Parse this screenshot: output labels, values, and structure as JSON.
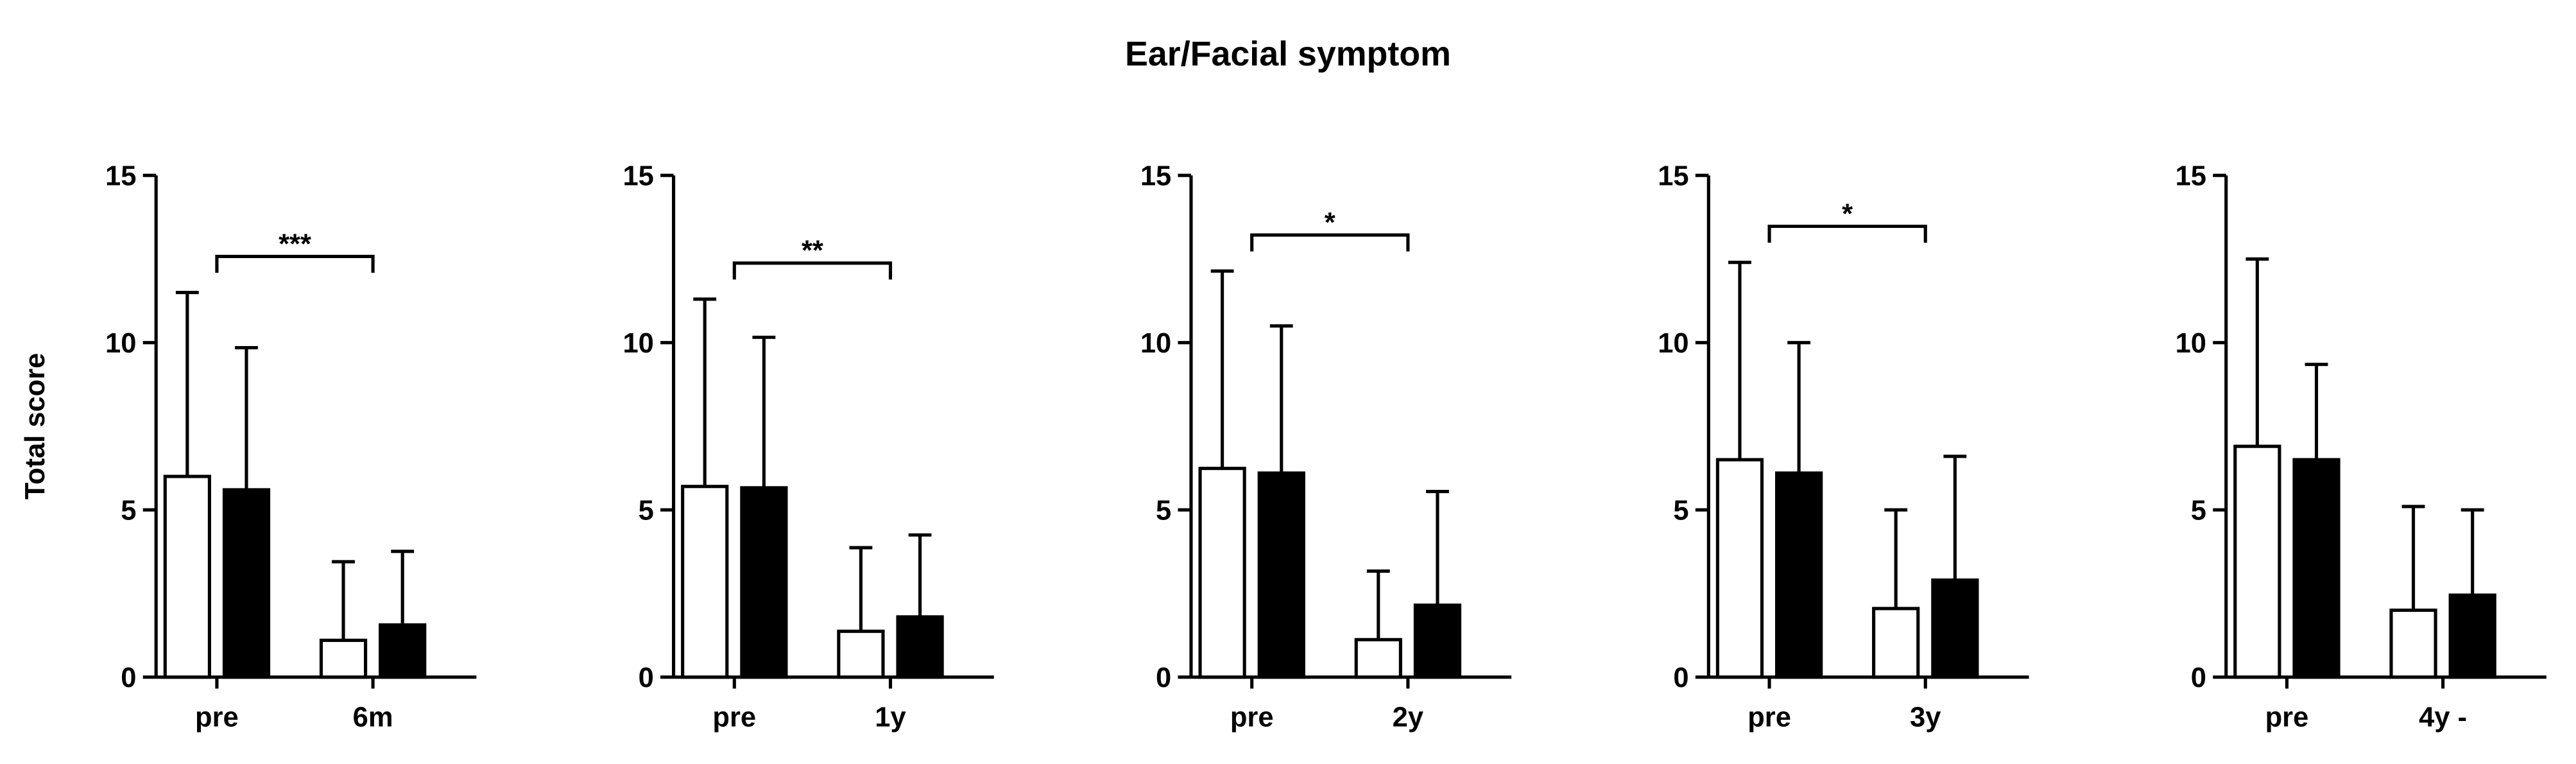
{
  "title": "Ear/Facial symptom",
  "chart_data": [
    {
      "type": "bar",
      "ylabel": "Total score",
      "categories": [
        "pre",
        "6m"
      ],
      "ylim": [
        0,
        15
      ],
      "yticks": [
        0,
        5,
        10,
        15
      ],
      "significance": "***",
      "series": [
        {
          "color": "#ffffff",
          "values": [
            6.0,
            1.1
          ],
          "errors": [
            5.5,
            2.35
          ]
        },
        {
          "color": "#000000",
          "values": [
            5.6,
            1.56
          ],
          "errors": [
            4.25,
            2.2
          ]
        }
      ]
    },
    {
      "type": "bar",
      "categories": [
        "pre",
        "1y"
      ],
      "ylim": [
        0,
        15
      ],
      "yticks": [
        0,
        5,
        10,
        15
      ],
      "significance": "**",
      "series": [
        {
          "color": "#ffffff",
          "values": [
            5.7,
            1.37
          ],
          "errors": [
            5.6,
            2.5
          ]
        },
        {
          "color": "#000000",
          "values": [
            5.66,
            1.8
          ],
          "errors": [
            4.5,
            2.45
          ]
        }
      ]
    },
    {
      "type": "bar",
      "categories": [
        "pre",
        "2y"
      ],
      "ylim": [
        0,
        15
      ],
      "yticks": [
        0,
        5,
        10,
        15
      ],
      "significance": "*",
      "series": [
        {
          "color": "#ffffff",
          "values": [
            6.24,
            1.12
          ],
          "errors": [
            5.9,
            2.05
          ]
        },
        {
          "color": "#000000",
          "values": [
            6.1,
            2.15
          ],
          "errors": [
            4.4,
            3.4
          ]
        }
      ]
    },
    {
      "type": "bar",
      "categories": [
        "pre",
        "3y"
      ],
      "ylim": [
        0,
        15
      ],
      "yticks": [
        0,
        5,
        10,
        15
      ],
      "significance": "*",
      "series": [
        {
          "color": "#ffffff",
          "values": [
            6.5,
            2.05
          ],
          "errors": [
            5.9,
            2.95
          ]
        },
        {
          "color": "#000000",
          "values": [
            6.1,
            2.9
          ],
          "errors": [
            3.9,
            3.7
          ]
        }
      ]
    },
    {
      "type": "bar",
      "categories": [
        "pre",
        "4y -"
      ],
      "ylim": [
        0,
        15
      ],
      "yticks": [
        0,
        5,
        10,
        15
      ],
      "series": [
        {
          "color": "#ffffff",
          "values": [
            6.9,
            2.0
          ],
          "errors": [
            5.6,
            3.1
          ]
        },
        {
          "color": "#000000",
          "values": [
            6.5,
            2.45
          ],
          "errors": [
            2.85,
            2.55
          ]
        }
      ]
    }
  ]
}
